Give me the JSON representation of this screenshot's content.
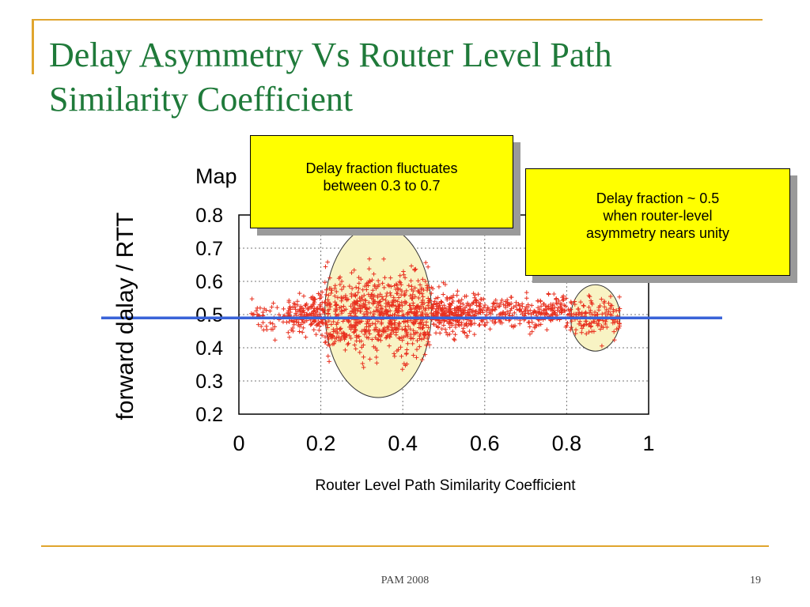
{
  "slide": {
    "title_line1": "Delay Asymmetry Vs Router Level Path",
    "title_line2": "Similarity Coefficient",
    "footer": "PAM 2008",
    "number": "19"
  },
  "callouts": {
    "left": {
      "line1": "Delay fraction fluctuates",
      "line2": "between 0.3 to 0.7"
    },
    "right": {
      "line1": "Delay fraction ~ 0.5",
      "line2": "when router-level",
      "line3": "asymmetry nears unity"
    }
  },
  "colors": {
    "points": "#e8301f",
    "reference_line": "#3a63d8",
    "highlight_fill": "#f8f3c4",
    "callout_fill": "#ffff00"
  },
  "chart_data": {
    "type": "scatter",
    "title_visible_fragment": "Map",
    "xlabel": "Router Level Path Similarity Coefficient",
    "ylabel": "forward dalay / RTT",
    "xlim": [
      0,
      1
    ],
    "ylim": [
      0.2,
      0.8
    ],
    "xticks": [
      "0",
      "0.2",
      "0.4",
      "0.6",
      "0.8",
      "1"
    ],
    "yticks": [
      "0.2",
      "0.3",
      "0.4",
      "0.5",
      "0.6",
      "0.7",
      "0.8"
    ],
    "grid": true,
    "reference_line_y": 0.49,
    "highlight_regions": [
      {
        "x_center": 0.34,
        "y_center": 0.51,
        "x_radius": 0.13,
        "y_radius": 0.26
      },
      {
        "x_center": 0.87,
        "y_center": 0.49,
        "x_radius": 0.06,
        "y_radius": 0.1
      }
    ],
    "clusters": [
      {
        "x_range": [
          0.12,
          0.21
        ],
        "y_mean": 0.5,
        "y_spread": 0.05,
        "count": 160
      },
      {
        "x_range": [
          0.21,
          0.47
        ],
        "y_mean": 0.5,
        "y_spread": 0.12,
        "count": 700
      },
      {
        "x_range": [
          0.47,
          0.58
        ],
        "y_mean": 0.5,
        "y_spread": 0.06,
        "count": 260
      },
      {
        "x_range": [
          0.58,
          0.82
        ],
        "y_mean": 0.51,
        "y_spread": 0.05,
        "count": 280
      },
      {
        "x_range": [
          0.82,
          0.93
        ],
        "y_mean": 0.49,
        "y_spread": 0.06,
        "count": 120
      },
      {
        "x_range": [
          0.03,
          0.12
        ],
        "y_mean": 0.49,
        "y_spread": 0.05,
        "count": 40
      }
    ]
  }
}
